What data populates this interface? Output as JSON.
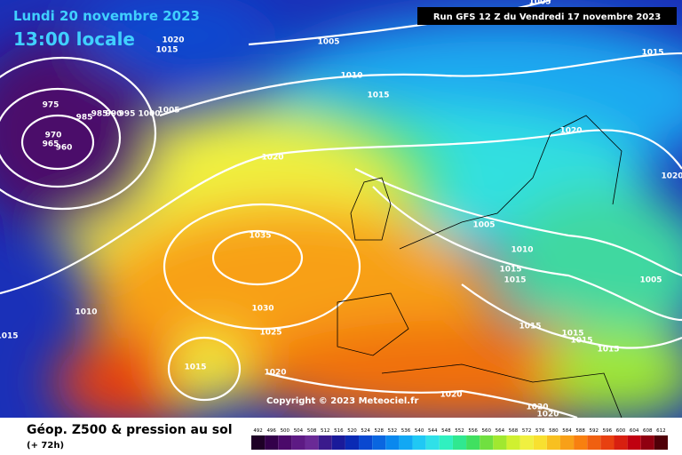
{
  "header": {
    "date": "Lundi 20 novembre 2023",
    "time": "13:00 locale",
    "run": "Run GFS 12 Z du Vendredi 17 novembre 2023"
  },
  "copyright": "Copyright © 2023 Meteociel.fr",
  "footer": {
    "title": "Géop. Z500 & pression au sol",
    "subtitle": "(+ 72h)"
  },
  "isobar_labels": [
    1020,
    1015,
    1005,
    1010,
    1015,
    975,
    985,
    985,
    990,
    995,
    1000,
    1005,
    970,
    965,
    960,
    1020,
    1020,
    1015,
    1005,
    1010,
    1015,
    1015,
    1035,
    1030,
    1025,
    1010,
    1015,
    1015,
    1020,
    1015,
    1015,
    1015,
    1015,
    1020,
    1020,
    1020,
    1005,
    1020,
    1005
  ],
  "colorbar": {
    "labels": [
      492,
      496,
      500,
      504,
      508,
      512,
      516,
      520,
      524,
      528,
      532,
      536,
      540,
      544,
      548,
      552,
      556,
      560,
      564,
      568,
      572,
      576,
      580,
      584,
      588,
      592,
      596,
      600,
      604,
      608,
      612
    ],
    "colors": [
      "#1e0026",
      "#33004a",
      "#4b0a6a",
      "#5d1a84",
      "#6a2a96",
      "#3a1a8c",
      "#1a1a9a",
      "#0a2ab4",
      "#0a48d0",
      "#0a66e0",
      "#0a88ee",
      "#12a8f4",
      "#20c8f4",
      "#30e0e8",
      "#30f0c0",
      "#30e890",
      "#40e060",
      "#70e040",
      "#a0e830",
      "#d0f030",
      "#f0f040",
      "#f8e030",
      "#f8c020",
      "#f8a018",
      "#f88010",
      "#f06010",
      "#e84010",
      "#d82010",
      "#c00010",
      "#900010",
      "#500008"
    ]
  }
}
